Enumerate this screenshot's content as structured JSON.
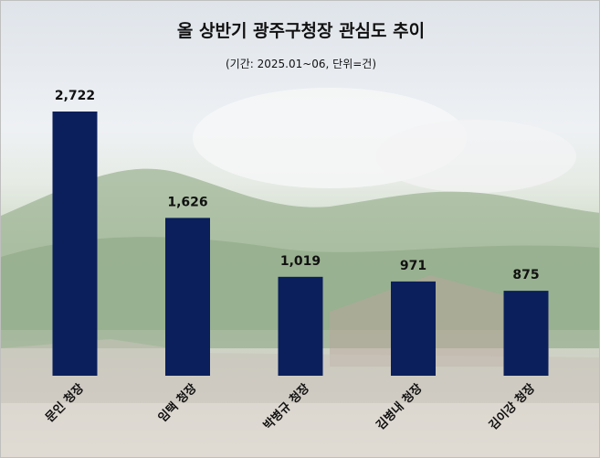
{
  "title": "올 상반기 광주구청장 관심도 추이",
  "subtitle": "(기간: 2025.01~06, 단위=건)",
  "chart_data": {
    "type": "bar",
    "categories": [
      "문인 청장",
      "임택 청장",
      "박병규 청장",
      "김병내 청장",
      "김이강 청장"
    ],
    "values": [
      2722,
      1626,
      1019,
      971,
      875
    ],
    "value_labels": [
      "2,722",
      "1,626",
      "1,019",
      "971",
      "875"
    ],
    "title": "올 상반기 광주구청장 관심도 추이",
    "xlabel": "",
    "ylabel": "",
    "ylim": [
      0,
      2722
    ],
    "grid": false,
    "bar_color": "#0b1f5c"
  }
}
